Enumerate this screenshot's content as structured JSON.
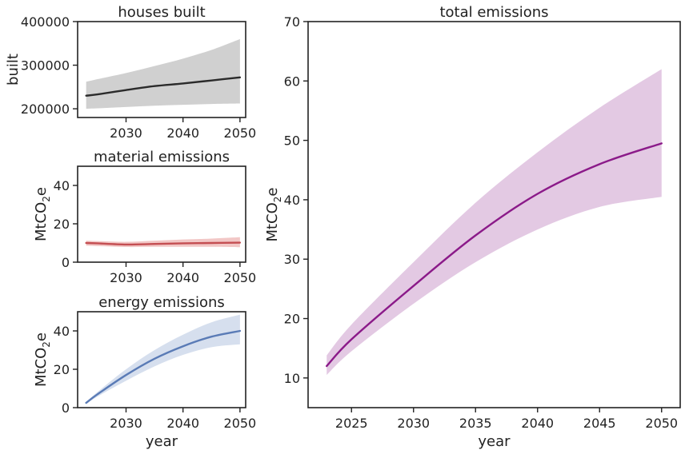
{
  "chart_data": [
    {
      "id": "houses",
      "type": "line",
      "title": "houses built",
      "xlabel": "",
      "ylabel": "built",
      "xlim": [
        2021.5,
        2051.0
      ],
      "ylim": [
        180000,
        400000
      ],
      "xticks": [
        "2030",
        "2040",
        "2050"
      ],
      "yticks": [
        "200000",
        "300000",
        "400000"
      ],
      "series": [
        {
          "color": "#2b2b2b",
          "band_color": "#d0d0d0",
          "x": [
            2023,
            2025,
            2030,
            2035,
            2040,
            2045,
            2050
          ],
          "y": [
            230000,
            233000,
            243000,
            252000,
            258000,
            265000,
            272000
          ],
          "lower": [
            200000,
            201000,
            204000,
            207000,
            209000,
            211000,
            212000
          ],
          "upper": [
            262000,
            268000,
            282000,
            298000,
            315000,
            335000,
            360000
          ]
        }
      ]
    },
    {
      "id": "material",
      "type": "line",
      "title": "material emissions",
      "xlabel": "",
      "ylabel": "MtCO2e",
      "xlim": [
        2021.5,
        2051.0
      ],
      "ylim": [
        0,
        50
      ],
      "xticks": [
        "2030",
        "2040",
        "2050"
      ],
      "yticks": [
        "0",
        "20",
        "40"
      ],
      "series": [
        {
          "color": "#c44e52",
          "band_color": "#f2c7c6",
          "x": [
            2023,
            2025,
            2030,
            2035,
            2040,
            2045,
            2050
          ],
          "y": [
            10.0,
            9.8,
            9.2,
            9.5,
            9.8,
            10.0,
            10.2
          ],
          "lower": [
            8.6,
            8.4,
            7.9,
            8.0,
            8.0,
            8.0,
            7.8
          ],
          "upper": [
            11.2,
            11.0,
            10.6,
            11.2,
            11.8,
            12.3,
            13.0
          ]
        }
      ]
    },
    {
      "id": "energy",
      "type": "line",
      "title": "energy emissions",
      "xlabel": "year",
      "ylabel": "MtCO2e",
      "xlim": [
        2021.5,
        2051.0
      ],
      "ylim": [
        0,
        50
      ],
      "xticks": [
        "2030",
        "2040",
        "2050"
      ],
      "yticks": [
        "0",
        "20",
        "40"
      ],
      "series": [
        {
          "color": "#5a7bb6",
          "band_color": "#d6dfee",
          "x": [
            2023,
            2025,
            2030,
            2035,
            2040,
            2045,
            2050
          ],
          "y": [
            2.5,
            7.0,
            17.0,
            25.5,
            32.0,
            37.0,
            40.0
          ],
          "lower": [
            2.0,
            5.8,
            14.0,
            21.5,
            27.5,
            31.5,
            33.0
          ],
          "upper": [
            3.0,
            8.2,
            20.0,
            30.0,
            38.0,
            44.5,
            48.5
          ]
        }
      ]
    },
    {
      "id": "total",
      "type": "line",
      "title": "total emissions",
      "xlabel": "year",
      "ylabel": "MtCO2e",
      "xlim": [
        2021.5,
        2051.5
      ],
      "ylim": [
        5,
        70
      ],
      "xticks": [
        "2025",
        "2030",
        "2035",
        "2040",
        "2045",
        "2050"
      ],
      "yticks": [
        "10",
        "20",
        "30",
        "40",
        "50",
        "60",
        "70"
      ],
      "series": [
        {
          "color": "#8b1a89",
          "band_color": "#e3c9e3",
          "x": [
            2023,
            2025,
            2030,
            2035,
            2040,
            2045,
            2050
          ],
          "y": [
            12.0,
            16.5,
            25.5,
            34.0,
            41.0,
            46.0,
            49.5
          ],
          "lower": [
            10.5,
            14.5,
            22.5,
            29.5,
            35.0,
            38.8,
            40.5
          ],
          "upper": [
            13.8,
            19.0,
            29.5,
            39.5,
            48.0,
            55.5,
            62.0
          ]
        }
      ]
    }
  ]
}
